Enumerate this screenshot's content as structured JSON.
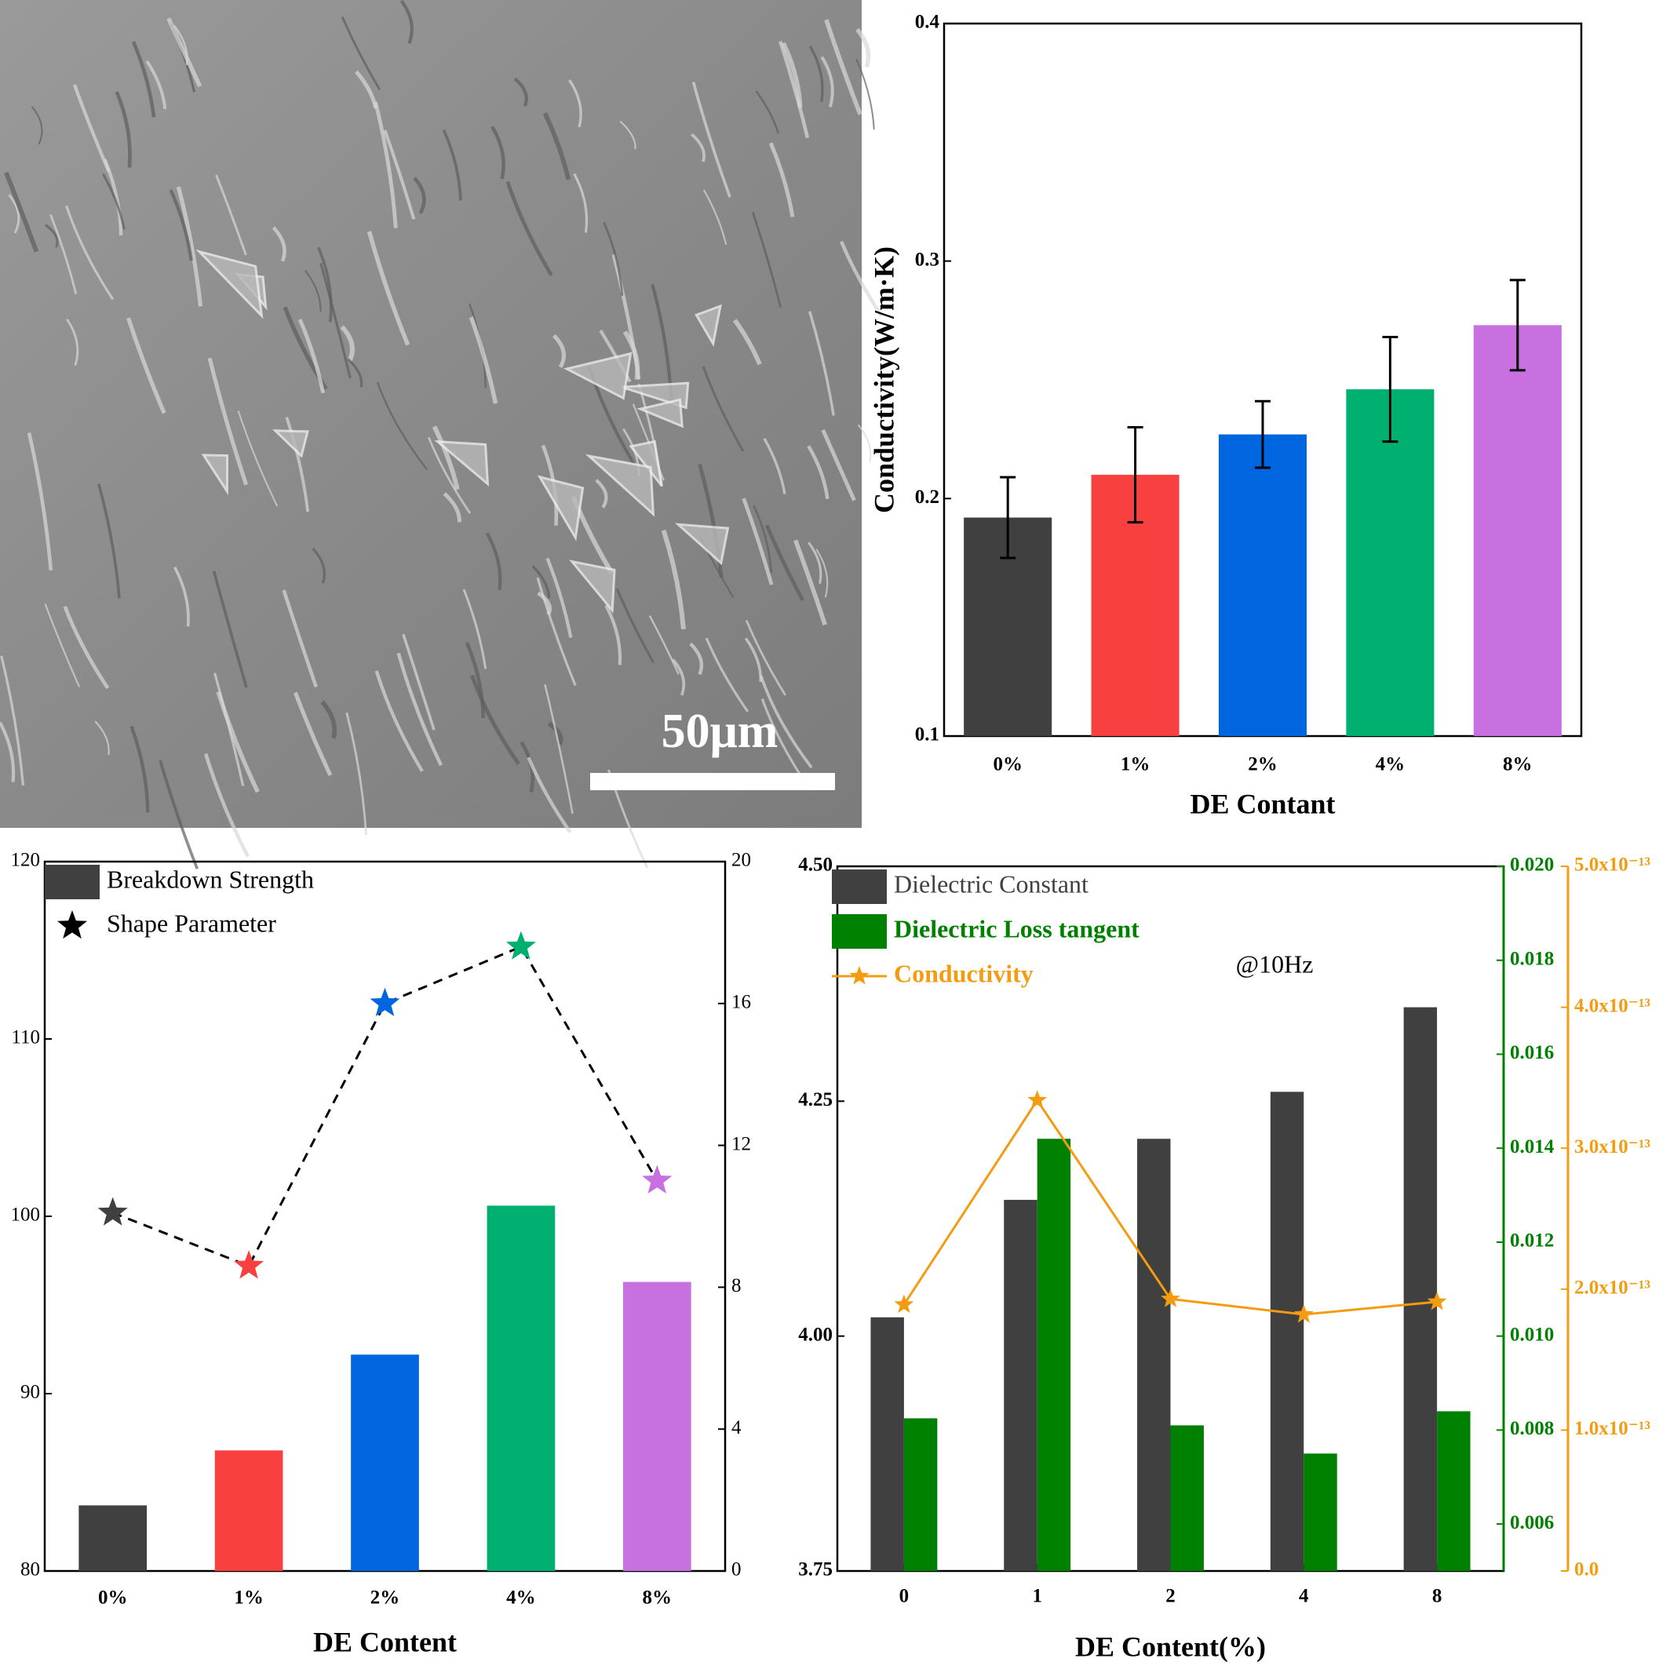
{
  "image": {
    "scale_bar_label": "50μm"
  },
  "chart_data": [
    {
      "type": "bar",
      "ylabel": "Conductivity(W/m·K)",
      "xlabel": "DE Contant",
      "categories": [
        "0%",
        "1%",
        "2%",
        "4%",
        "8%"
      ],
      "values": [
        0.192,
        0.21,
        0.227,
        0.246,
        0.273
      ],
      "errors": [
        0.017,
        0.02,
        0.014,
        0.022,
        0.019
      ],
      "colors": [
        "#404040",
        "#f94040",
        "#0066e0",
        "#00b070",
        "#c870e0"
      ],
      "ylim": [
        0.1,
        0.4
      ],
      "yticks": [
        0.1,
        0.2,
        0.3,
        0.4
      ]
    },
    {
      "type": "combo",
      "xlabel": "DE Content",
      "categories": [
        "0%",
        "1%",
        "2%",
        "4%",
        "8%"
      ],
      "series": [
        {
          "name": "Breakdown Strength",
          "type": "bar",
          "color": "#404040",
          "colors": [
            "#404040",
            "#f94040",
            "#0066e0",
            "#00b070",
            "#c870e0"
          ],
          "values": [
            83.7,
            86.8,
            92.2,
            100.6,
            96.3
          ]
        },
        {
          "name": "Shape Parameter",
          "type": "line",
          "axis": "y2",
          "color": "#000000",
          "marker": "star",
          "linestyle": "dashed",
          "colors": [
            "#404040",
            "#f94040",
            "#0066e0",
            "#00b070",
            "#c870e0"
          ],
          "values": [
            10.1,
            8.6,
            16.0,
            17.6,
            11.0
          ]
        }
      ],
      "ylim": [
        80,
        120
      ],
      "yticks": [
        80,
        90,
        100,
        110,
        120
      ],
      "y2lim": [
        0,
        20
      ],
      "y2ticks": [
        0,
        4,
        8,
        12,
        16,
        20
      ]
    },
    {
      "type": "combo",
      "xlabel": "DE Content(%)",
      "annotation": "@10Hz",
      "categories": [
        "0",
        "1",
        "2",
        "4",
        "8"
      ],
      "series": [
        {
          "name": "Dielectric Constant",
          "type": "bar",
          "color": "#404040",
          "values": [
            4.02,
            4.145,
            4.21,
            4.26,
            4.35
          ]
        },
        {
          "name": "Dielectric Loss tangent",
          "type": "bar",
          "axis": "y2",
          "color": "#008000",
          "values": [
            0.00825,
            0.0142,
            0.0081,
            0.0075,
            0.0084
          ]
        },
        {
          "name": "Conductivity",
          "type": "line",
          "axis": "y3",
          "color": "#f39c12",
          "marker": "star",
          "linestyle": "solid",
          "values": [
            1.89e-13,
            3.34e-13,
            1.93e-13,
            1.82e-13,
            1.91e-13
          ]
        }
      ],
      "ylim": [
        3.75,
        4.5
      ],
      "yticks": [
        3.75,
        {
          "value": 4,
          "label": "4.00"
        },
        4.25,
        {
          "value": 4.5,
          "label": "4.50"
        }
      ],
      "y2lim": [
        0.005,
        0.02
      ],
      "y2ticks": [
        0.006,
        0.008,
        {
          "value": 0.01,
          "label": "0.010"
        },
        0.012,
        0.014,
        0.016,
        0.018,
        {
          "value": 0.02,
          "label": "0.020"
        }
      ],
      "y3lim": [
        0,
        5e-13
      ],
      "y3ticks": [
        {
          "value": 0,
          "label": "0.0"
        },
        {
          "value": 1e-13,
          "label": "1.0x10⁻¹³"
        },
        {
          "value": 2e-13,
          "label": "2.0x10⁻¹³"
        },
        {
          "value": 3e-13,
          "label": "3.0x10⁻¹³"
        },
        {
          "value": 4e-13,
          "label": "4.0x10⁻¹³"
        },
        {
          "value": 5e-13,
          "label": "5.0x10⁻¹³"
        }
      ]
    }
  ]
}
